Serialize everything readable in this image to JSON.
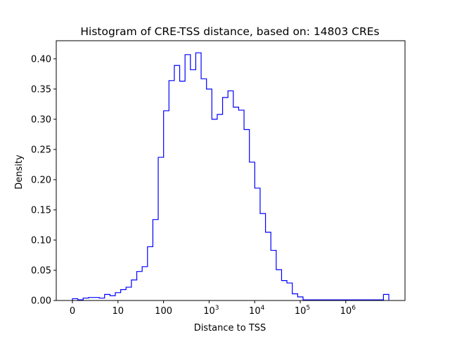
{
  "chart_data": {
    "type": "histogram",
    "title": "Histogram of CRE-TSS distance, based on: 14803 CREs",
    "xlabel": "Distance to TSS",
    "ylabel": "Density",
    "ylim": [
      0,
      0.43
    ],
    "y_ticks": [
      "0.00",
      "0.05",
      "0.10",
      "0.15",
      "0.20",
      "0.25",
      "0.30",
      "0.35",
      "0.40"
    ],
    "x_ticks": [
      {
        "base": "0",
        "exp": ""
      },
      {
        "base": "10",
        "exp": ""
      },
      {
        "base": "100",
        "exp": ""
      },
      {
        "base": "10",
        "exp": "3"
      },
      {
        "base": "10",
        "exp": "4"
      },
      {
        "base": "10",
        "exp": "5"
      },
      {
        "base": "10",
        "exp": "6"
      }
    ],
    "grid": false,
    "legend": "none",
    "color": "#0000ff",
    "series": [
      {
        "values": [
          0.003,
          0.001,
          0.004,
          0.005,
          0.005,
          0.004,
          0.01,
          0.008,
          0.013,
          0.018,
          0.022,
          0.034,
          0.048,
          0.056,
          0.089,
          0.134,
          0.237,
          0.314,
          0.364,
          0.389,
          0.363,
          0.407,
          0.382,
          0.41,
          0.367,
          0.35,
          0.3,
          0.308,
          0.336,
          0.347,
          0.32,
          0.315,
          0.283,
          0.229,
          0.186,
          0.144,
          0.113,
          0.083,
          0.051,
          0.033,
          0.029,
          0.011,
          0.006,
          0.001,
          0.001,
          0.001,
          0.001,
          0.001,
          0.001,
          0.001,
          0.001,
          0.001,
          0.001,
          0.001,
          0.001,
          0.001,
          0.001,
          0.001,
          0.01
        ]
      }
    ]
  }
}
